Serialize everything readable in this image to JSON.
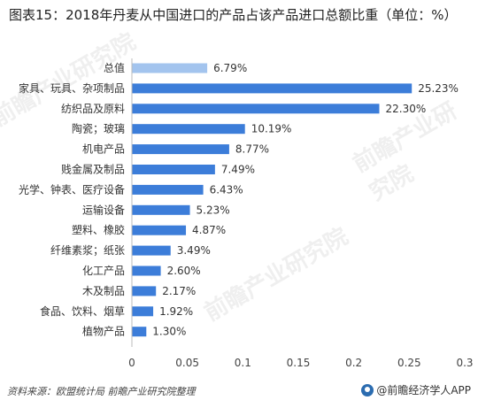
{
  "title": "图表15：2018年丹麦从中国进口的产品占该产品进口总额比重（单位：%）",
  "footer": {
    "source": "资料来源：欧盟统计局 前瞻产业研究院整理",
    "brand": "@前瞻经济学人APP"
  },
  "watermark": "前瞻产业研究院",
  "colors": {
    "bar": "#3c7dd9",
    "highlight": "#a3c4ee"
  },
  "chart_data": {
    "type": "bar",
    "orientation": "horizontal",
    "categories": [
      "总值",
      "家具、玩具、杂项制品",
      "纺织品及原料",
      "陶瓷；玻璃",
      "机电产品",
      "贱金属及制品",
      "光学、钟表、医疗设备",
      "运输设备",
      "塑料、橡胶",
      "纤维素浆；纸张",
      "化工产品",
      "木及制品",
      "食品、饮料、烟草",
      "植物产品"
    ],
    "values": [
      0.0679,
      0.2523,
      0.223,
      0.1019,
      0.0877,
      0.0749,
      0.0643,
      0.0523,
      0.0487,
      0.0349,
      0.026,
      0.0217,
      0.0192,
      0.013
    ],
    "labels": [
      "6.79%",
      "25.23%",
      "22.30%",
      "10.19%",
      "8.77%",
      "7.49%",
      "6.43%",
      "5.23%",
      "4.87%",
      "3.49%",
      "2.60%",
      "2.17%",
      "1.92%",
      "1.30%"
    ],
    "xlim": [
      0,
      0.3
    ],
    "xticks": [
      0,
      0.05,
      0.1,
      0.15,
      0.2,
      0.25,
      0.3
    ],
    "xtick_labels": [
      "0",
      "0.05",
      "0.1",
      "0.15",
      "0.2",
      "0.25",
      "0.3"
    ],
    "grid": false
  }
}
